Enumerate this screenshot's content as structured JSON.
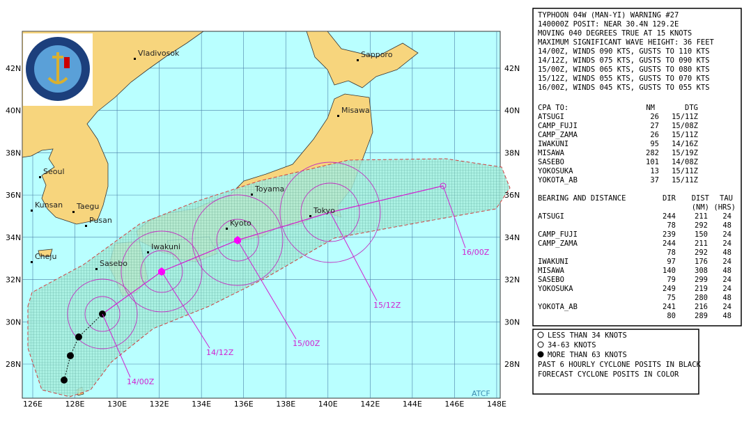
{
  "header_lines": [
    "TYPHOON 04W (MAN-YI) WARNING #27",
    "140000Z POSIT: NEAR 30.4N 129.2E",
    "MOVING 040 DEGREES TRUE AT 15 KNOTS",
    "MAXIMUM SIGNIFICANT WAVE HEIGHT: 36 FEET",
    "14/00Z, WINDS 090 KTS, GUSTS TO 110 KTS",
    "14/12Z, WINDS 075 KTS, GUSTS TO 090 KTS",
    "15/00Z, WINDS 065 KTS, GUSTS TO 080 KTS",
    "15/12Z, WINDS 055 KTS, GUSTS TO 070 KTS",
    "16/00Z, WINDS 045 KTS, GUSTS TO 055 KTS"
  ],
  "cpa": {
    "header": [
      "CPA TO:",
      "NM",
      "DTG"
    ],
    "rows": [
      [
        "ATSUGI",
        "26",
        "15/11Z"
      ],
      [
        "CAMP_FUJI",
        "27",
        "15/08Z"
      ],
      [
        "CAMP_ZAMA",
        "26",
        "15/11Z"
      ],
      [
        "IWAKUNI",
        "95",
        "14/16Z"
      ],
      [
        "MISAWA",
        "282",
        "15/19Z"
      ],
      [
        "SASEBO",
        "101",
        "14/08Z"
      ],
      [
        "YOKOSUKA",
        "13",
        "15/11Z"
      ],
      [
        "YOKOTA_AB",
        "37",
        "15/11Z"
      ]
    ]
  },
  "bearing": {
    "header": [
      "BEARING AND DISTANCE",
      "DIR",
      "DIST",
      "TAU"
    ],
    "subheader": [
      "(NM)",
      "(HRS)"
    ],
    "rows": [
      {
        "name": "ATSUGI",
        "dir": "244",
        "dist": "211",
        "tau": "24"
      },
      {
        "dir": "78",
        "dist": "292",
        "tau": "48"
      },
      {
        "name": "CAMP_FUJI",
        "dir": "239",
        "dist": "150",
        "tau": "24"
      },
      {
        "name": "CAMP_ZAMA",
        "dir": "244",
        "dist": "211",
        "tau": "24"
      },
      {
        "dir": "78",
        "dist": "292",
        "tau": "48"
      },
      {
        "name": "IWAKUNI",
        "dir": "97",
        "dist": "176",
        "tau": "24"
      },
      {
        "name": "MISAWA",
        "dir": "140",
        "dist": "308",
        "tau": "48"
      },
      {
        "name": "SASEBO",
        "dir": "79",
        "dist": "299",
        "tau": "24"
      },
      {
        "name": "YOKOSUKA",
        "dir": "249",
        "dist": "219",
        "tau": "24"
      },
      {
        "dir": "75",
        "dist": "280",
        "tau": "48"
      },
      {
        "name": "YOKOTA_AB",
        "dir": "241",
        "dist": "216",
        "tau": "24"
      },
      {
        "dir": "80",
        "dist": "289",
        "tau": "48"
      }
    ]
  },
  "legend": [
    "LESS THAN 34 KNOTS",
    "34-63 KNOTS",
    "MORE THAN 63 KNOTS",
    "PAST 6 HOURLY CYCLONE POSITS IN BLACK",
    "FORECAST CYCLONE POSITS IN COLOR"
  ],
  "map": {
    "lat_labels": [
      "42N",
      "40N",
      "38N",
      "36N",
      "34N",
      "32N",
      "30N",
      "28N"
    ],
    "lon_labels": [
      "126E",
      "128E",
      "130E",
      "132E",
      "134E",
      "136E",
      "138E",
      "140E",
      "142E",
      "144E",
      "146E",
      "148E"
    ],
    "cities": [
      "Vladivosok",
      "Sapporo",
      "Misawa",
      "Seoul",
      "Kunsan",
      "Taegu",
      "Pusan",
      "Cheju",
      "Sasebo",
      "Iwakuni",
      "Toyama",
      "Kyoto",
      "Tokyo"
    ],
    "forecast_labels": [
      "14/00Z",
      "14/12Z",
      "15/00Z",
      "15/12Z",
      "16/00Z"
    ],
    "credit": "ATCF"
  }
}
